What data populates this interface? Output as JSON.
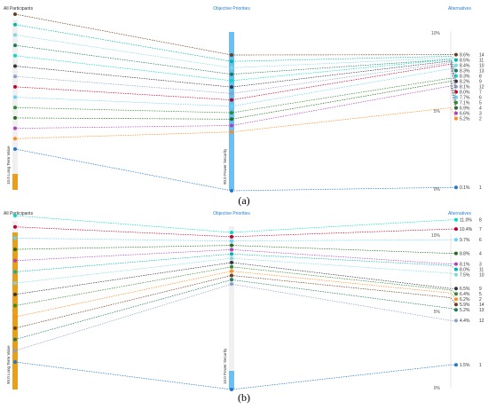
{
  "chart_data": [
    {
      "type": "line",
      "panel": "(a)",
      "header_left": "All Participants",
      "header_center": "Objective Priorities",
      "header_right": "Alternatives",
      "left_axis_label": "10.0 Long Term Value",
      "center_axis_label": "90.0 Power Security",
      "right_ticks": [
        "10%",
        "5%",
        "0%"
      ],
      "alternatives": [
        {
          "id": "14",
          "pct": 8.6,
          "label": "8.6%",
          "color": "#6b3f1f"
        },
        {
          "id": "11",
          "pct": 8.5,
          "label": "8.5%",
          "color": "#00b5ad"
        },
        {
          "id": "10",
          "pct": 8.4,
          "label": "8.4%",
          "color": "#7fd6e0"
        },
        {
          "id": "13",
          "pct": 8.3,
          "label": "8.3%",
          "color": "#1a7a5a"
        },
        {
          "id": "8",
          "pct": 8.3,
          "label": "8.3%",
          "color": "#00d9c8"
        },
        {
          "id": "9",
          "pct": 8.2,
          "label": "8.2%",
          "color": "#333344"
        },
        {
          "id": "12",
          "pct": 8.1,
          "label": "8.1%",
          "color": "#8aa0c8"
        },
        {
          "id": "7",
          "pct": 8.0,
          "label": "8.0%",
          "color": "#c00030"
        },
        {
          "id": "6",
          "pct": 7.7,
          "label": "7.7%",
          "color": "#66d0ff"
        },
        {
          "id": "5",
          "pct": 7.1,
          "label": "7.1%",
          "color": "#2e8b2e"
        },
        {
          "id": "4",
          "pct": 6.9,
          "label": "6.9%",
          "color": "#1e6e1e"
        },
        {
          "id": "3",
          "pct": 6.6,
          "label": "6.6%",
          "color": "#b040c0"
        },
        {
          "id": "2",
          "pct": 5.2,
          "label": "5.2%",
          "color": "#ff8a1e"
        },
        {
          "id": "1",
          "pct": 0.1,
          "label": "0.1%",
          "color": "#1f77d0"
        }
      ]
    },
    {
      "type": "line",
      "panel": "(b)",
      "header_left": "All Participants",
      "header_center": "Objective Priorities",
      "header_right": "Alternatives",
      "left_axis_label": "90.0 Long Term Value",
      "center_axis_label": "10.0 Power Security",
      "right_ticks": [
        "10%",
        "5%",
        "0%"
      ],
      "alternatives": [
        {
          "id": "8",
          "pct": 11.0,
          "label": "11.0%",
          "color": "#00d9c8"
        },
        {
          "id": "7",
          "pct": 10.4,
          "label": "10.4%",
          "color": "#c00030"
        },
        {
          "id": "6",
          "pct": 9.7,
          "label": "9.7%",
          "color": "#66d0ff"
        },
        {
          "id": "4",
          "pct": 8.8,
          "label": "8.8%",
          "color": "#1e6e1e"
        },
        {
          "id": "3",
          "pct": 8.1,
          "label": "8.1%",
          "color": "#b040c0"
        },
        {
          "id": "11",
          "pct": 8.0,
          "label": "8.0%",
          "color": "#00b5ad"
        },
        {
          "id": "10",
          "pct": 7.5,
          "label": "7.5%",
          "color": "#7fd6e0"
        },
        {
          "id": "9",
          "pct": 6.5,
          "label": "6.5%",
          "color": "#333344"
        },
        {
          "id": "5",
          "pct": 6.4,
          "label": "6.4%",
          "color": "#2e8b2e"
        },
        {
          "id": "2",
          "pct": 6.2,
          "label": "6.2%",
          "color": "#ff8a1e"
        },
        {
          "id": "14",
          "pct": 5.9,
          "label": "5.9%",
          "color": "#6b3f1f"
        },
        {
          "id": "13",
          "pct": 5.2,
          "label": "5.2%",
          "color": "#1a7a5a"
        },
        {
          "id": "12",
          "pct": 4.4,
          "label": "4.4%",
          "color": "#8aa0c8"
        },
        {
          "id": "1",
          "pct": 1.5,
          "label": "1.5%",
          "color": "#1f77d0"
        }
      ]
    }
  ]
}
